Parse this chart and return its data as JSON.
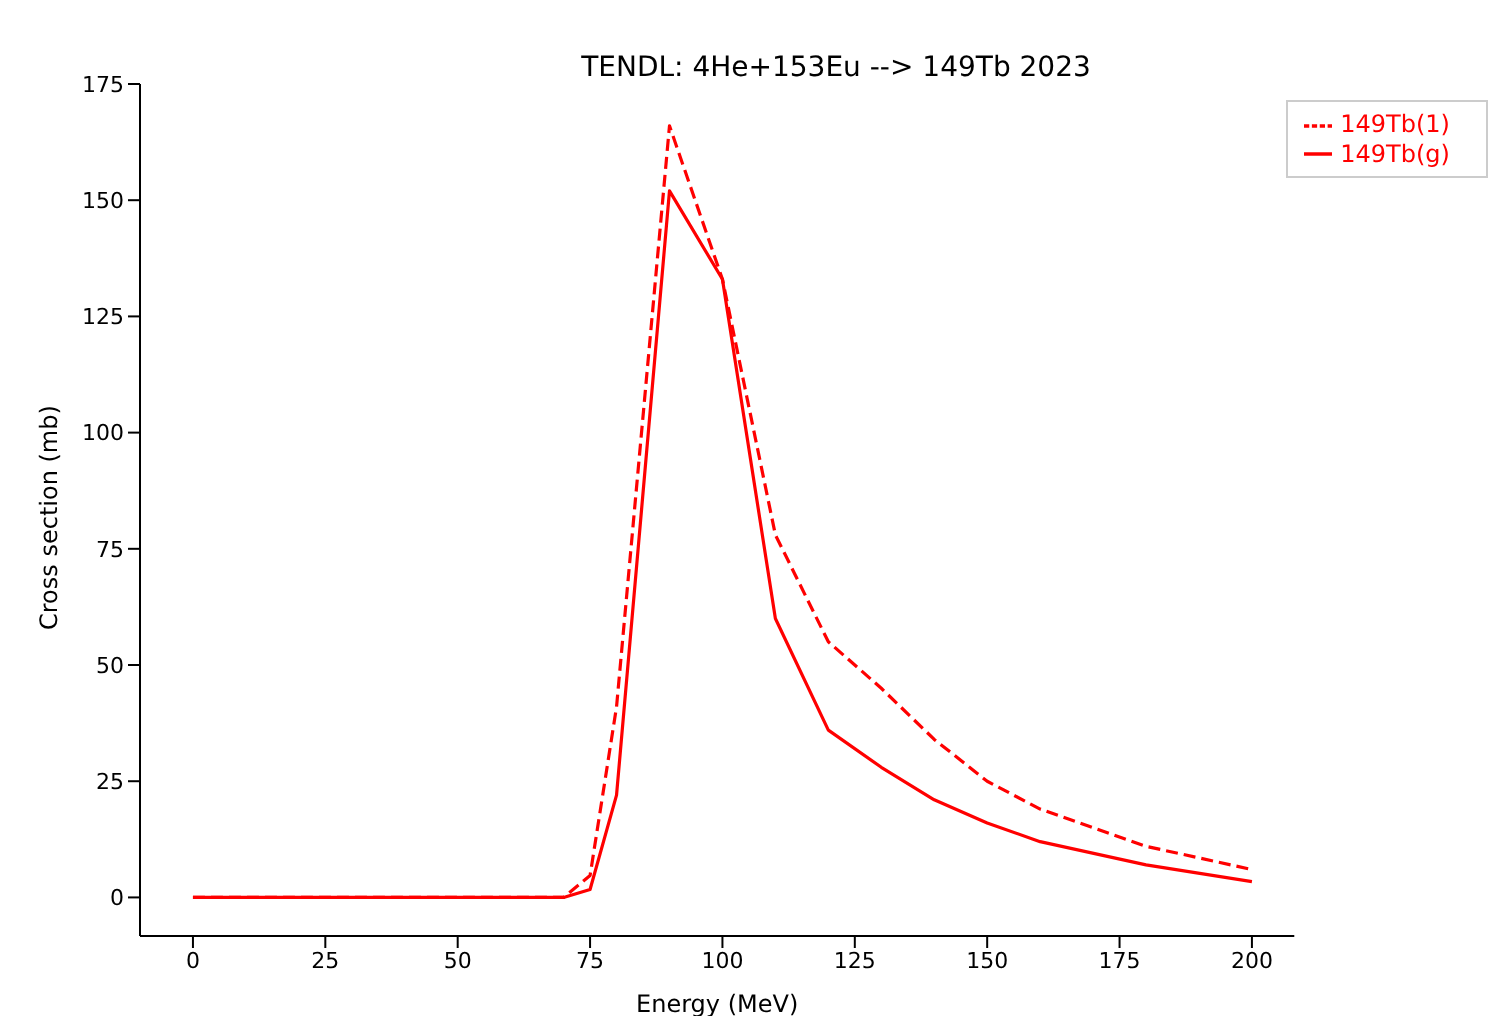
{
  "chart_data": {
    "type": "line",
    "title": "TENDL: 4He+153Eu --> 149Tb 2023",
    "xlabel": "Energy (MeV)",
    "ylabel": "Cross section (mb)",
    "x": [
      0,
      10,
      20,
      30,
      40,
      50,
      60,
      70,
      75,
      80,
      90,
      100,
      110,
      120,
      130,
      140,
      150,
      160,
      180,
      200
    ],
    "series": [
      {
        "name": "149Tb(g)",
        "color": "#ff0000",
        "line_style": "solid",
        "values": [
          0,
          0,
          0,
          0,
          0,
          0,
          0,
          0,
          1.7,
          22,
          152,
          133,
          60,
          36,
          28,
          21,
          16,
          12,
          7,
          3.4
        ]
      },
      {
        "name": "149Tb(1)",
        "color": "#ff0000",
        "line_style": "dashed",
        "values": [
          0,
          0,
          0,
          0,
          0,
          0,
          0,
          0,
          4.7,
          41,
          166,
          133,
          78,
          55,
          45,
          34,
          25,
          19,
          11,
          6
        ]
      }
    ],
    "xlim": [
      -10,
      208
    ],
    "xticks": [
      0,
      25,
      50,
      75,
      100,
      125,
      150,
      175,
      200
    ],
    "ylim": [
      -8.3,
      175
    ],
    "yticks": [
      0,
      25,
      50,
      75,
      100,
      125,
      150,
      175
    ],
    "legend": "top right",
    "marker": "none"
  }
}
